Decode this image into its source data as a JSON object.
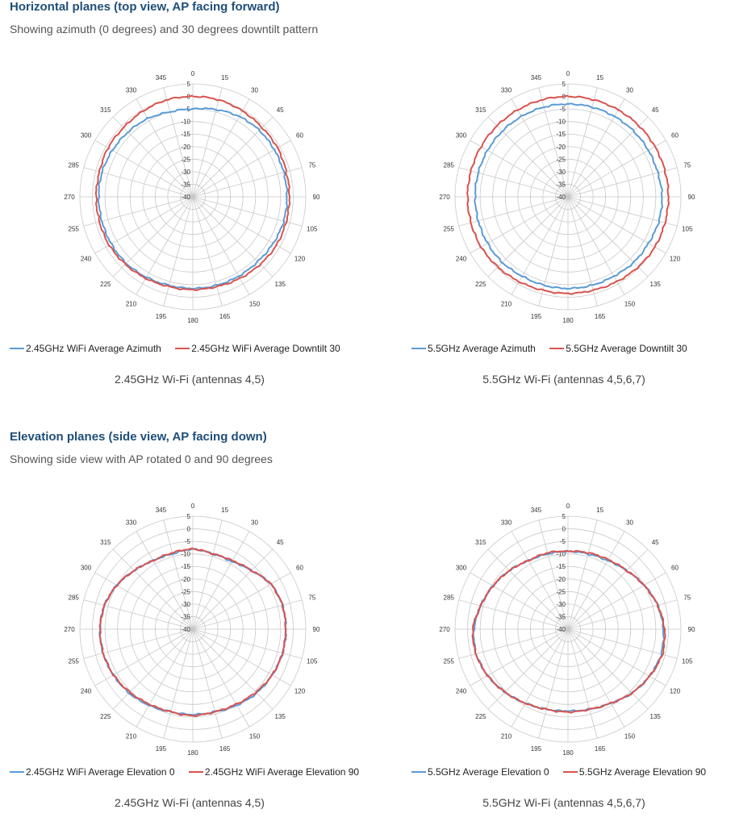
{
  "sections": [
    {
      "title": "Horizontal planes (top view, AP facing forward)",
      "subtitle": "Showing azimuth (0 degrees) and 30 degrees downtilt pattern"
    },
    {
      "title": "Elevation planes (side view, AP facing down)",
      "subtitle": "Showing side view with AP rotated 0 and 90 degrees"
    }
  ],
  "colors": {
    "blue": "#5b9bd5",
    "red": "#d9534f",
    "title": "#1f4e79"
  },
  "chart_data": [
    {
      "type": "polar",
      "caption": "2.45GHz Wi-Fi (antennas 4,5)",
      "angle_ticks": [
        0,
        15,
        30,
        45,
        60,
        75,
        90,
        105,
        120,
        135,
        150,
        165,
        180,
        195,
        210,
        225,
        240,
        255,
        270,
        285,
        300,
        315,
        330,
        345
      ],
      "radial_ticks": [
        5,
        0,
        -5,
        -10,
        -15,
        -20,
        -25,
        -30,
        -35,
        -40
      ],
      "rlim": [
        -40,
        5
      ],
      "series": [
        {
          "name": "2.45GHz WiFi Average Azimuth",
          "color": "#5b9bd5",
          "theta": [
            0,
            15,
            30,
            45,
            60,
            75,
            90,
            105,
            120,
            135,
            150,
            165,
            180,
            195,
            210,
            225,
            240,
            255,
            270,
            285,
            300,
            315,
            330,
            345
          ],
          "values": [
            -5,
            -4,
            -3,
            -2.5,
            -2.5,
            -2.5,
            -2.5,
            -2.5,
            -3,
            -3.5,
            -3.5,
            -3.5,
            -3.5,
            -3.5,
            -3,
            -2.5,
            -2.5,
            -2.5,
            -2.5,
            -2.5,
            -3,
            -3.5,
            -4,
            -5
          ]
        },
        {
          "name": "2.45GHz WiFi Average Downtilt 30",
          "color": "#d9534f",
          "theta": [
            0,
            15,
            30,
            45,
            60,
            75,
            90,
            105,
            120,
            135,
            150,
            165,
            180,
            195,
            210,
            225,
            240,
            255,
            270,
            285,
            300,
            315,
            330,
            345
          ],
          "values": [
            0,
            0,
            -0.5,
            -1,
            -1,
            -1.5,
            -1.5,
            -1.5,
            -1.5,
            -2,
            -2.5,
            -3,
            -3,
            -3,
            -2.5,
            -2,
            -1.5,
            -1.5,
            -1.5,
            -1.5,
            -1,
            -1,
            -0.5,
            0
          ]
        }
      ]
    },
    {
      "type": "polar",
      "caption": "5.5GHz Wi-Fi (antennas 4,5,6,7)",
      "angle_ticks": [
        0,
        15,
        30,
        45,
        60,
        75,
        90,
        105,
        120,
        135,
        150,
        165,
        180,
        195,
        210,
        225,
        240,
        255,
        270,
        285,
        300,
        315,
        330,
        345
      ],
      "radial_ticks": [
        5,
        0,
        -5,
        -10,
        -15,
        -20,
        -25,
        -30,
        -35,
        -40
      ],
      "rlim": [
        -40,
        5
      ],
      "series": [
        {
          "name": "5.5GHz Average Azimuth",
          "color": "#5b9bd5",
          "theta": [
            0,
            15,
            30,
            45,
            60,
            75,
            90,
            105,
            120,
            135,
            150,
            165,
            180,
            195,
            210,
            225,
            240,
            255,
            270,
            285,
            300,
            315,
            330,
            345
          ],
          "values": [
            -3,
            -3,
            -3,
            -3,
            -3,
            -3,
            -2.5,
            -2.5,
            -3,
            -3,
            -3.5,
            -3.5,
            -3.5,
            -3.5,
            -3.5,
            -3,
            -3,
            -3,
            -3,
            -3,
            -3,
            -3,
            -3,
            -3
          ]
        },
        {
          "name": "5.5GHz Average Downtilt 30",
          "color": "#d9534f",
          "theta": [
            0,
            15,
            30,
            45,
            60,
            75,
            90,
            105,
            120,
            135,
            150,
            165,
            180,
            195,
            210,
            225,
            240,
            255,
            270,
            285,
            300,
            315,
            330,
            345
          ],
          "values": [
            0,
            0,
            0,
            0,
            0,
            0,
            0,
            0,
            0,
            -0.5,
            -1,
            -1.5,
            -1.5,
            -1.5,
            -1,
            -0.5,
            0,
            0,
            0,
            0,
            0,
            0,
            0,
            0
          ]
        }
      ]
    },
    {
      "type": "polar",
      "caption": "2.45GHz Wi-Fi (antennas 4,5)",
      "angle_ticks": [
        0,
        15,
        30,
        45,
        60,
        75,
        90,
        105,
        120,
        135,
        150,
        165,
        180,
        195,
        210,
        225,
        240,
        255,
        270,
        285,
        300,
        315,
        330,
        345
      ],
      "radial_ticks": [
        5,
        0,
        -5,
        -10,
        -15,
        -20,
        -25,
        -30,
        -35,
        -40
      ],
      "rlim": [
        -40,
        5
      ],
      "series": [
        {
          "name": "2.45GHz WiFi Average Elevation 0",
          "color": "#5b9bd5",
          "theta": [
            0,
            15,
            30,
            45,
            60,
            75,
            90,
            105,
            120,
            135,
            150,
            165,
            180,
            195,
            210,
            225,
            240,
            255,
            270,
            285,
            300,
            315,
            330,
            345
          ],
          "values": [
            -8,
            -9,
            -9,
            -7,
            -4,
            -3,
            -3,
            -3,
            -3.5,
            -4,
            -5,
            -6,
            -6,
            -6,
            -5,
            -4,
            -3.5,
            -3,
            -3,
            -3.5,
            -5,
            -7,
            -8.5,
            -9
          ]
        },
        {
          "name": "2.45GHz WiFi Average Elevation 90",
          "color": "#d9534f",
          "theta": [
            0,
            15,
            30,
            45,
            60,
            75,
            90,
            105,
            120,
            135,
            150,
            165,
            180,
            195,
            210,
            225,
            240,
            255,
            270,
            285,
            300,
            315,
            330,
            345
          ],
          "values": [
            -8,
            -9,
            -8.5,
            -7,
            -4,
            -3,
            -3,
            -3,
            -3.5,
            -4.5,
            -5.5,
            -6,
            -5.5,
            -6,
            -5.5,
            -4.5,
            -3.5,
            -3,
            -3,
            -3.5,
            -5,
            -7,
            -8.5,
            -8.5
          ]
        }
      ]
    },
    {
      "type": "polar",
      "caption": "5.5GHz Wi-Fi (antennas 4,5,6,7)",
      "angle_ticks": [
        0,
        15,
        30,
        45,
        60,
        75,
        90,
        105,
        120,
        135,
        150,
        165,
        180,
        195,
        210,
        225,
        240,
        255,
        270,
        285,
        300,
        315,
        330,
        345
      ],
      "radial_ticks": [
        5,
        0,
        -5,
        -10,
        -15,
        -20,
        -25,
        -30,
        -35,
        -40
      ],
      "rlim": [
        -40,
        5
      ],
      "series": [
        {
          "name": "5.5GHz Average Elevation 0",
          "color": "#5b9bd5",
          "theta": [
            0,
            15,
            30,
            45,
            60,
            75,
            90,
            105,
            120,
            135,
            150,
            165,
            180,
            195,
            210,
            225,
            240,
            255,
            270,
            285,
            300,
            315,
            330,
            345
          ],
          "values": [
            -9,
            -9,
            -8.5,
            -7,
            -5,
            -3,
            -2,
            -1.5,
            -2.5,
            -4,
            -6,
            -7,
            -7.5,
            -7,
            -6,
            -4.5,
            -3,
            -2,
            -2.5,
            -4,
            -5.5,
            -7,
            -8.5,
            -9
          ]
        },
        {
          "name": "5.5GHz Average Elevation 90",
          "color": "#d9534f",
          "theta": [
            0,
            15,
            30,
            45,
            60,
            75,
            90,
            105,
            120,
            135,
            150,
            165,
            180,
            195,
            210,
            225,
            240,
            255,
            270,
            285,
            300,
            315,
            330,
            345
          ],
          "values": [
            -9,
            -8.5,
            -8,
            -7,
            -5,
            -3,
            -1.5,
            -1,
            -2.5,
            -4,
            -6,
            -7,
            -7,
            -7,
            -6,
            -4.5,
            -3,
            -2,
            -2,
            -4,
            -5.5,
            -7,
            -8.5,
            -8.5
          ]
        }
      ]
    }
  ]
}
